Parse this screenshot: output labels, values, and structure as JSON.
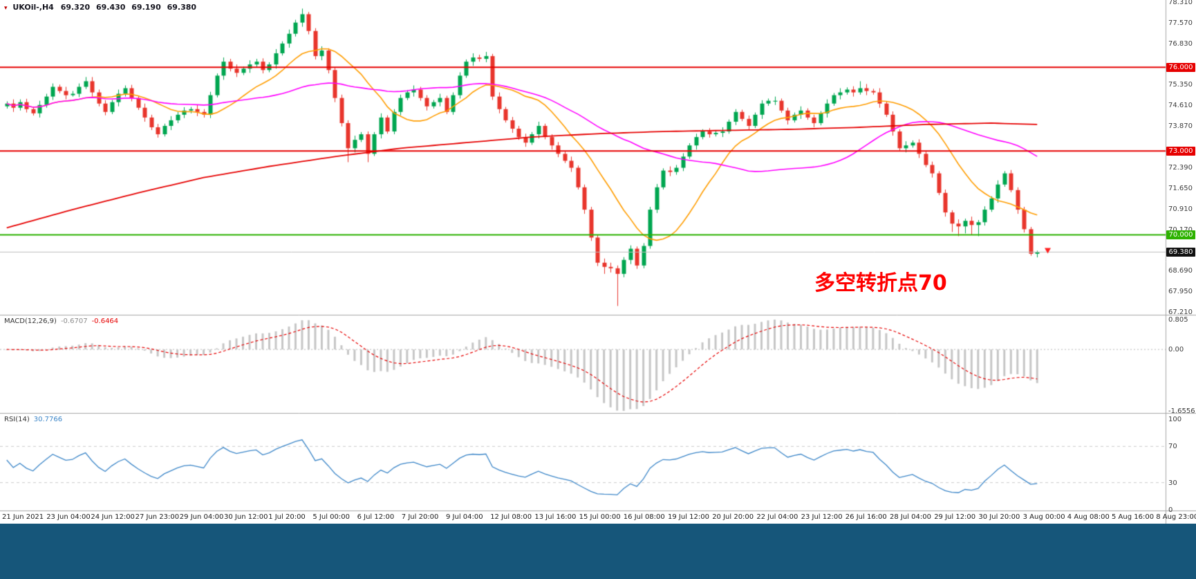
{
  "header": {
    "symbol_period": "UKOil-,H4",
    "open": "69.320",
    "high": "69.430",
    "low": "69.190",
    "close": "69.380"
  },
  "annotation": {
    "text": "多空转折点70",
    "color": "#ff0000"
  },
  "chart_data": {
    "type": "candlestick-with-indicators",
    "symbol": "UKOil-",
    "timeframe": "H4",
    "colors": {
      "up": "#00a650",
      "down": "#e8352c",
      "background": "#ffffff",
      "panel_border": "#a6a6a6",
      "bottom_bar": "#16567a",
      "macd_histogram": "#c6c6c6",
      "macd_signal": "#e60000",
      "rsi_line": "#3c86c8"
    },
    "price_axis": {
      "max": 78.31,
      "min": 67.21,
      "tick_step": 0.74,
      "ticks": [
        {
          "label": "78.310",
          "value": 78.31
        },
        {
          "label": "77.570",
          "value": 77.57
        },
        {
          "label": "76.830",
          "value": 76.83
        },
        {
          "label": "75.350",
          "value": 75.35
        },
        {
          "label": "74.610",
          "value": 74.61
        },
        {
          "label": "73.870",
          "value": 73.87
        },
        {
          "label": "72.390",
          "value": 72.39
        },
        {
          "label": "71.650",
          "value": 71.65
        },
        {
          "label": "70.910",
          "value": 70.91
        },
        {
          "label": "70.170",
          "value": 70.17
        },
        {
          "label": "68.690",
          "value": 68.69
        },
        {
          "label": "67.950",
          "value": 67.95
        },
        {
          "label": "67.210",
          "value": 67.21
        }
      ],
      "markers": [
        {
          "label": "76.000",
          "value": 76.0,
          "color": "#e60000"
        },
        {
          "label": "73.000",
          "value": 73.0,
          "color": "#e60000"
        },
        {
          "label": "70.000",
          "value": 70.0,
          "color": "#2db200"
        },
        {
          "label": "69.380",
          "value": 69.38,
          "color": "#111111"
        }
      ]
    },
    "hlines": [
      {
        "value": 76.0,
        "color": "#e60000",
        "width": 2
      },
      {
        "value": 73.0,
        "color": "#e60000",
        "width": 2
      },
      {
        "value": 70.0,
        "color": "#2db200",
        "width": 2
      },
      {
        "value": 69.38,
        "color": "#bdbdbd",
        "width": 1
      }
    ],
    "time_axis": [
      "21 Jun 2021",
      "23 Jun 04:00",
      "24 Jun 12:00",
      "27 Jun 23:00",
      "29 Jun 04:00",
      "30 Jun 12:00",
      "1 Jul 20:00",
      "5 Jul 00:00",
      "6 Jul 12:00",
      "7 Jul 20:00",
      "9 Jul 04:00",
      "12 Jul 08:00",
      "13 Jul 16:00",
      "15 Jul 00:00",
      "16 Jul 08:00",
      "19 Jul 12:00",
      "20 Jul 20:00",
      "22 Jul 04:00",
      "23 Jul 12:00",
      "26 Jul 16:00",
      "28 Jul 04:00",
      "29 Jul 12:00",
      "30 Jul 20:00",
      "3 Aug 00:00",
      "4 Aug 08:00",
      "5 Aug 16:00",
      "8 Aug 23:00"
    ],
    "moving_averages": [
      {
        "name": "ma-fast",
        "type": "sma",
        "period": 13,
        "color": "#ff9d00",
        "width": 1.6
      },
      {
        "name": "ma-medium",
        "type": "sma",
        "period": 40,
        "color": "#ff00ff",
        "width": 1.6
      },
      {
        "name": "ma-slow",
        "type": "waypoints",
        "color": "#e60000",
        "width": 1.8,
        "waypoints": [
          [
            0,
            70.25
          ],
          [
            10,
            70.9
          ],
          [
            20,
            71.5
          ],
          [
            30,
            72.05
          ],
          [
            40,
            72.45
          ],
          [
            50,
            72.8
          ],
          [
            60,
            73.1
          ],
          [
            70,
            73.3
          ],
          [
            80,
            73.5
          ],
          [
            90,
            73.62
          ],
          [
            100,
            73.7
          ],
          [
            110,
            73.74
          ],
          [
            120,
            73.78
          ],
          [
            130,
            73.85
          ],
          [
            140,
            73.95
          ],
          [
            150,
            74.0
          ],
          [
            157,
            73.95
          ]
        ]
      }
    ],
    "macd": {
      "label": "MACD(12,26,9)",
      "fast": 12,
      "slow": 26,
      "signal": 9,
      "display_main": "-0.6707",
      "display_signal": "-0.6464",
      "axis": {
        "max": 0.805,
        "min": -1.6556,
        "ticks": [
          {
            "label": "0.805",
            "value": 0.805
          },
          {
            "label": "0.00",
            "value": 0
          },
          {
            "label": "-1.6556",
            "value": -1.6556
          }
        ]
      }
    },
    "rsi": {
      "label": "RSI(14)",
      "period": 14,
      "display_value": "30.7766",
      "levels": [
        70,
        30
      ],
      "axis": {
        "max": 100,
        "min": 0,
        "ticks": [
          {
            "label": "100",
            "value": 100
          },
          {
            "label": "70",
            "value": 70
          },
          {
            "label": "30",
            "value": 30
          },
          {
            "label": "0",
            "value": 0
          }
        ]
      }
    },
    "candles_ohlc": [
      [
        74.6,
        74.78,
        74.52,
        74.7
      ],
      [
        74.7,
        74.85,
        74.4,
        74.55
      ],
      [
        74.55,
        74.85,
        74.45,
        74.75
      ],
      [
        74.75,
        74.87,
        74.38,
        74.5
      ],
      [
        74.5,
        74.58,
        74.27,
        74.35
      ],
      [
        74.35,
        74.8,
        74.2,
        74.65
      ],
      [
        74.65,
        75.05,
        74.55,
        74.95
      ],
      [
        74.95,
        75.42,
        74.83,
        75.3
      ],
      [
        75.3,
        75.38,
        75.07,
        75.15
      ],
      [
        75.15,
        75.3,
        74.85,
        75.0
      ],
      [
        75.0,
        75.15,
        74.95,
        75.05
      ],
      [
        75.05,
        75.42,
        74.93,
        75.3
      ],
      [
        75.3,
        75.65,
        75.22,
        75.5
      ],
      [
        75.5,
        75.65,
        74.95,
        75.1
      ],
      [
        75.1,
        75.2,
        74.6,
        74.7
      ],
      [
        74.7,
        74.82,
        74.28,
        74.4
      ],
      [
        74.4,
        74.83,
        74.32,
        74.75
      ],
      [
        74.75,
        75.2,
        74.6,
        75.05
      ],
      [
        75.05,
        75.35,
        74.95,
        75.25
      ],
      [
        75.25,
        75.37,
        74.78,
        74.9
      ],
      [
        74.9,
        74.98,
        74.47,
        74.55
      ],
      [
        74.55,
        74.7,
        74.05,
        74.2
      ],
      [
        74.2,
        74.3,
        73.75,
        73.85
      ],
      [
        73.85,
        73.97,
        73.48,
        73.6
      ],
      [
        73.6,
        73.98,
        73.52,
        73.9
      ],
      [
        73.9,
        74.25,
        73.75,
        74.1
      ],
      [
        74.1,
        74.4,
        74.0,
        74.3
      ],
      [
        74.3,
        74.57,
        74.18,
        74.45
      ],
      [
        74.45,
        74.58,
        74.35,
        74.5
      ],
      [
        74.5,
        74.65,
        74.25,
        74.4
      ],
      [
        74.4,
        74.5,
        74.2,
        74.3
      ],
      [
        74.3,
        75.12,
        74.18,
        75.0
      ],
      [
        75.0,
        75.78,
        74.92,
        75.7
      ],
      [
        75.7,
        76.35,
        75.55,
        76.2
      ],
      [
        76.2,
        76.3,
        75.85,
        75.95
      ],
      [
        75.95,
        76.1,
        75.65,
        75.8
      ],
      [
        75.8,
        76.03,
        75.72,
        75.95
      ],
      [
        75.95,
        76.25,
        75.8,
        76.1
      ],
      [
        76.1,
        76.3,
        76.0,
        76.2
      ],
      [
        76.2,
        76.32,
        75.78,
        75.9
      ],
      [
        75.9,
        76.18,
        75.82,
        76.1
      ],
      [
        76.1,
        76.65,
        75.95,
        76.5
      ],
      [
        76.5,
        76.93,
        76.42,
        76.85
      ],
      [
        76.85,
        77.35,
        76.7,
        77.2
      ],
      [
        77.2,
        77.7,
        77.1,
        77.6
      ],
      [
        77.6,
        78.1,
        77.45,
        77.9
      ],
      [
        77.9,
        77.98,
        77.18,
        77.3
      ],
      [
        77.3,
        77.4,
        76.28,
        76.4
      ],
      [
        76.4,
        76.75,
        76.25,
        76.6
      ],
      [
        76.6,
        76.68,
        75.78,
        75.9
      ],
      [
        75.9,
        76.0,
        74.75,
        74.9
      ],
      [
        74.9,
        75.02,
        73.88,
        74.0
      ],
      [
        74.0,
        74.1,
        72.6,
        73.1
      ],
      [
        73.1,
        73.55,
        72.95,
        73.4
      ],
      [
        73.4,
        73.68,
        73.32,
        73.6
      ],
      [
        73.6,
        73.7,
        72.6,
        72.9
      ],
      [
        72.9,
        73.68,
        72.82,
        73.6
      ],
      [
        73.6,
        74.35,
        73.45,
        74.2
      ],
      [
        74.2,
        74.28,
        73.62,
        73.7
      ],
      [
        73.7,
        74.5,
        73.6,
        74.4
      ],
      [
        74.4,
        75.02,
        74.28,
        74.9
      ],
      [
        74.9,
        75.18,
        74.82,
        75.1
      ],
      [
        75.1,
        75.35,
        74.95,
        75.2
      ],
      [
        75.2,
        75.3,
        74.8,
        74.9
      ],
      [
        74.9,
        75.0,
        74.45,
        74.6
      ],
      [
        74.6,
        74.83,
        74.52,
        74.75
      ],
      [
        74.75,
        75.05,
        74.6,
        74.9
      ],
      [
        74.9,
        74.98,
        74.32,
        74.4
      ],
      [
        74.4,
        75.1,
        74.3,
        75.0
      ],
      [
        75.0,
        75.82,
        74.88,
        75.7
      ],
      [
        75.7,
        76.28,
        75.62,
        76.2
      ],
      [
        76.2,
        76.5,
        76.05,
        76.35
      ],
      [
        76.35,
        76.45,
        76.2,
        76.3
      ],
      [
        76.3,
        76.55,
        76.18,
        76.4
      ],
      [
        76.4,
        76.48,
        74.83,
        74.95
      ],
      [
        74.95,
        75.1,
        74.35,
        74.5
      ],
      [
        74.5,
        74.58,
        74.02,
        74.1
      ],
      [
        74.1,
        74.22,
        73.65,
        73.8
      ],
      [
        73.8,
        73.9,
        73.4,
        73.5
      ],
      [
        73.5,
        73.62,
        73.15,
        73.3
      ],
      [
        73.3,
        73.68,
        73.22,
        73.6
      ],
      [
        73.6,
        74.05,
        73.45,
        73.9
      ],
      [
        73.9,
        73.98,
        73.42,
        73.5
      ],
      [
        73.5,
        73.6,
        73.05,
        73.2
      ],
      [
        73.2,
        73.32,
        72.78,
        72.9
      ],
      [
        72.9,
        72.98,
        72.57,
        72.65
      ],
      [
        72.65,
        72.8,
        72.25,
        72.4
      ],
      [
        72.4,
        72.48,
        71.62,
        71.7
      ],
      [
        71.7,
        71.8,
        70.75,
        70.9
      ],
      [
        70.9,
        71.0,
        69.78,
        69.9
      ],
      [
        69.9,
        70.0,
        68.88,
        69.0
      ],
      [
        69.0,
        69.15,
        68.6,
        68.85
      ],
      [
        68.85,
        69.0,
        68.65,
        68.8
      ],
      [
        68.8,
        68.9,
        67.45,
        68.6
      ],
      [
        68.6,
        69.2,
        68.48,
        69.1
      ],
      [
        69.1,
        69.62,
        68.95,
        69.5
      ],
      [
        69.5,
        69.58,
        68.78,
        68.9
      ],
      [
        68.9,
        69.7,
        68.8,
        69.6
      ],
      [
        69.6,
        71.0,
        69.5,
        70.9
      ],
      [
        70.9,
        71.82,
        70.78,
        71.7
      ],
      [
        71.7,
        72.38,
        71.62,
        72.3
      ],
      [
        72.3,
        72.45,
        72.1,
        72.25
      ],
      [
        72.25,
        72.5,
        72.15,
        72.4
      ],
      [
        72.4,
        72.92,
        72.28,
        72.8
      ],
      [
        72.8,
        73.28,
        72.72,
        73.2
      ],
      [
        73.2,
        73.62,
        73.05,
        73.5
      ],
      [
        73.5,
        73.78,
        73.42,
        73.7
      ],
      [
        73.7,
        73.82,
        73.48,
        73.6
      ],
      [
        73.6,
        73.73,
        73.52,
        73.65
      ],
      [
        73.65,
        73.85,
        73.5,
        73.7
      ],
      [
        73.7,
        74.13,
        73.62,
        74.05
      ],
      [
        74.05,
        74.5,
        73.93,
        74.4
      ],
      [
        74.4,
        74.48,
        74.07,
        74.15
      ],
      [
        74.15,
        74.27,
        73.75,
        73.9
      ],
      [
        73.9,
        74.38,
        73.82,
        74.3
      ],
      [
        74.3,
        74.82,
        74.15,
        74.7
      ],
      [
        74.7,
        74.88,
        74.62,
        74.8
      ],
      [
        74.8,
        74.95,
        74.65,
        74.8
      ],
      [
        74.8,
        74.88,
        74.37,
        74.45
      ],
      [
        74.45,
        74.55,
        73.95,
        74.1
      ],
      [
        74.1,
        74.38,
        74.02,
        74.3
      ],
      [
        74.3,
        74.6,
        74.15,
        74.45
      ],
      [
        74.45,
        74.53,
        74.12,
        74.2
      ],
      [
        74.2,
        74.3,
        73.85,
        74.0
      ],
      [
        74.0,
        74.43,
        73.92,
        74.35
      ],
      [
        74.35,
        74.85,
        74.2,
        74.7
      ],
      [
        74.7,
        75.08,
        74.62,
        75.0
      ],
      [
        75.0,
        75.25,
        74.85,
        75.1
      ],
      [
        75.1,
        75.28,
        75.02,
        75.2
      ],
      [
        75.2,
        75.32,
        74.95,
        75.1
      ],
      [
        75.1,
        75.5,
        75.02,
        75.25
      ],
      [
        75.25,
        75.4,
        75.0,
        75.15
      ],
      [
        75.15,
        75.23,
        75.02,
        75.1
      ],
      [
        75.1,
        75.25,
        74.55,
        74.7
      ],
      [
        74.7,
        74.78,
        74.22,
        74.3
      ],
      [
        74.3,
        74.42,
        73.55,
        73.7
      ],
      [
        73.7,
        73.78,
        73.02,
        73.1
      ],
      [
        73.1,
        73.35,
        72.95,
        73.2
      ],
      [
        73.2,
        73.38,
        73.12,
        73.3
      ],
      [
        73.3,
        73.42,
        72.75,
        72.9
      ],
      [
        72.9,
        72.98,
        72.42,
        72.5
      ],
      [
        72.5,
        72.62,
        72.05,
        72.2
      ],
      [
        72.2,
        72.28,
        71.42,
        71.5
      ],
      [
        71.5,
        71.62,
        70.65,
        70.8
      ],
      [
        70.8,
        70.88,
        70.1,
        70.4
      ],
      [
        70.4,
        70.55,
        69.95,
        70.3
      ],
      [
        70.3,
        70.58,
        70.05,
        70.5
      ],
      [
        70.5,
        70.65,
        70.0,
        70.35
      ],
      [
        70.35,
        70.53,
        69.95,
        70.45
      ],
      [
        70.45,
        71.02,
        70.33,
        70.9
      ],
      [
        70.9,
        71.38,
        70.82,
        71.3
      ],
      [
        71.3,
        71.95,
        71.15,
        71.8
      ],
      [
        71.8,
        72.28,
        71.72,
        72.2
      ],
      [
        72.2,
        72.32,
        71.52,
        71.6
      ],
      [
        71.6,
        71.7,
        70.75,
        70.9
      ],
      [
        70.9,
        71.0,
        70.08,
        70.2
      ],
      [
        70.2,
        70.28,
        69.25,
        69.32
      ],
      [
        69.32,
        69.43,
        69.19,
        69.38
      ]
    ]
  }
}
